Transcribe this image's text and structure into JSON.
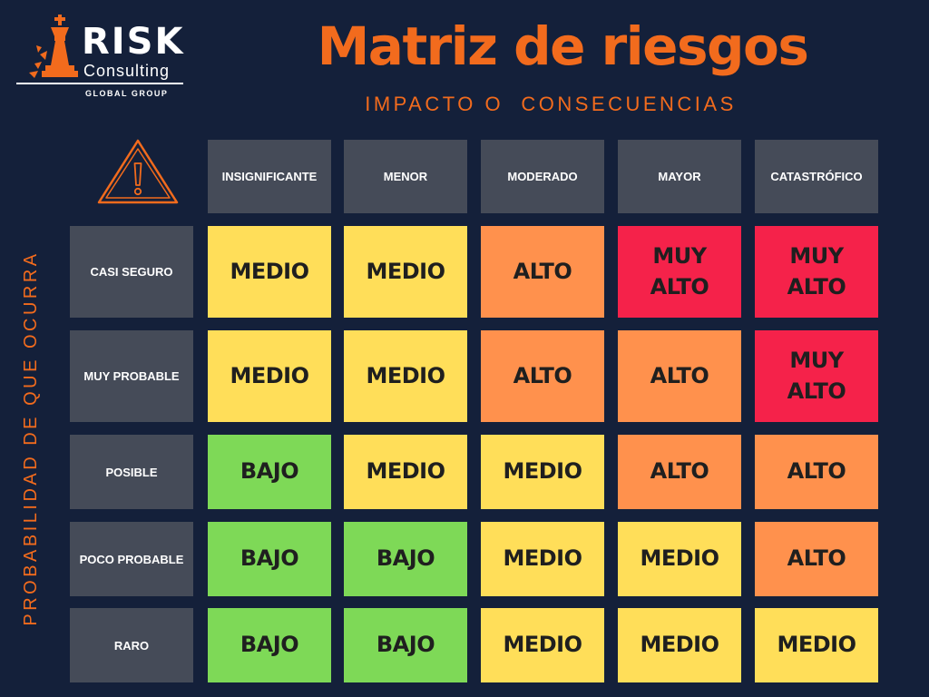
{
  "logo": {
    "name_top": "RISK",
    "name_middle": "Consulting",
    "name_bottom": "GLOBAL GROUP"
  },
  "title": "Matriz de riesgos",
  "x_axis_label": "IMPACTO O  CONSECUENCIAS",
  "y_axis_label": "PROBABILIDAD DE QUE OCURRA",
  "colors": {
    "background": "#14203a",
    "accent": "#f26b1d",
    "header": "#454b58",
    "BAJO": "#7ed957",
    "MEDIO": "#ffde59",
    "ALTO": "#ff914d",
    "MUY ALTO": "#f5224a"
  },
  "columns": [
    "INSIGNIFICANTE",
    "MENOR",
    "MODERADO",
    "MAYOR",
    "CATASTRÓFICO"
  ],
  "rows": [
    {
      "label": "CASI SEGURO",
      "cells": [
        "MEDIO",
        "MEDIO",
        "ALTO",
        "MUY ALTO",
        "MUY ALTO"
      ]
    },
    {
      "label": "MUY PROBABLE",
      "cells": [
        "MEDIO",
        "MEDIO",
        "ALTO",
        "ALTO",
        "MUY ALTO"
      ]
    },
    {
      "label": "POSIBLE",
      "cells": [
        "BAJO",
        "MEDIO",
        "MEDIO",
        "ALTO",
        "ALTO"
      ]
    },
    {
      "label": "POCO PROBABLE",
      "cells": [
        "BAJO",
        "BAJO",
        "MEDIO",
        "MEDIO",
        "ALTO"
      ]
    },
    {
      "label": "RARO",
      "cells": [
        "BAJO",
        "BAJO",
        "MEDIO",
        "MEDIO",
        "MEDIO"
      ]
    }
  ]
}
